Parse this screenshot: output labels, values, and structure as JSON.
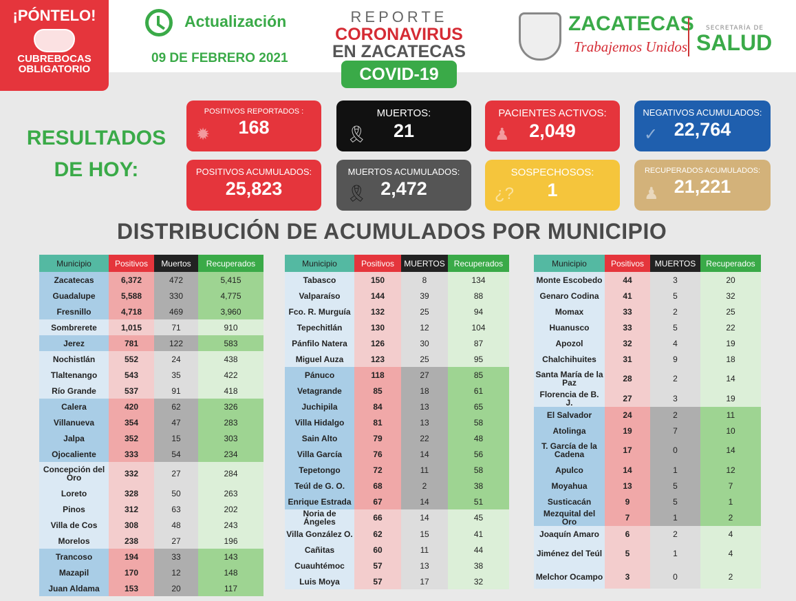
{
  "header": {
    "ponte_title": "¡PÓNTELO!",
    "ponte_sub1": "CUBREBOCAS",
    "ponte_sub2": "OBLIGATORIO",
    "update_label": "Actualización",
    "update_date": "09 DE FEBRERO 2021",
    "report_line1": "REPORTE",
    "report_line2": "CORONAVIRUS",
    "report_line3": "EN ZACATECAS",
    "covid_badge": "COVID-19",
    "state_name": "ZACATECAS",
    "state_slogan": "Trabajemos Unidos",
    "secretaria": "SECRETARÍA DE",
    "salud": "SALUD"
  },
  "results_title_1": "RESULTADOS",
  "results_title_2": "DE HOY:",
  "cards": {
    "positivos": {
      "label": "POSITIVOS REPORTADOS :",
      "value": "168"
    },
    "muertos": {
      "label": "MUERTOS:",
      "value": "21"
    },
    "activos": {
      "label": "PACIENTES ACTIVOS:",
      "value": "2,049"
    },
    "negativos": {
      "label": "NEGATIVOS ACUMULADOS:",
      "value": "22,764"
    },
    "pos_acum": {
      "label": "POSITIVOS ACUMULADOS:",
      "value": "25,823"
    },
    "mue_acum": {
      "label": "MUERTOS ACUMULADOS:",
      "value": "2,472"
    },
    "sospechosos": {
      "label": "SOSPECHOSOS:",
      "value": "1"
    },
    "recuperados": {
      "label": "RECUPERADOS ACUMULADOS:",
      "value": "21,221"
    }
  },
  "distribution_title": "DISTRIBUCIÓN DE ACUMULADOS POR MUNICIPIO",
  "colors": {
    "red": "#e5353c",
    "green": "#3aaa48",
    "blue": "#1f5fae",
    "yellow": "#f5c53c",
    "tan": "#d3b27a",
    "black": "#111111",
    "gray": "#555555"
  },
  "table1": {
    "headers": [
      "Municipio",
      "Positivos",
      "Muertos",
      "Recuperados"
    ],
    "rows": [
      [
        "Zacatecas",
        "6,372",
        "472",
        "5,415"
      ],
      [
        "Guadalupe",
        "5,588",
        "330",
        "4,775"
      ],
      [
        "Fresnillo",
        "4,718",
        "469",
        "3,960"
      ],
      [
        "Sombrerete",
        "1,015",
        "71",
        "910"
      ],
      [
        "Jerez",
        "781",
        "122",
        "583"
      ],
      [
        "Nochistlán",
        "552",
        "24",
        "438"
      ],
      [
        "Tlaltenango",
        "543",
        "35",
        "422"
      ],
      [
        "Río Grande",
        "537",
        "91",
        "418"
      ],
      [
        "Calera",
        "420",
        "62",
        "326"
      ],
      [
        "Villanueva",
        "354",
        "47",
        "283"
      ],
      [
        "Jalpa",
        "352",
        "15",
        "303"
      ],
      [
        "Ojocaliente",
        "333",
        "54",
        "234"
      ],
      [
        "Concepción del Oro",
        "332",
        "27",
        "284"
      ],
      [
        "Loreto",
        "328",
        "50",
        "263"
      ],
      [
        "Pinos",
        "312",
        "63",
        "202"
      ],
      [
        "Villa de Cos",
        "308",
        "48",
        "243"
      ],
      [
        "Morelos",
        "238",
        "27",
        "196"
      ],
      [
        "Trancoso",
        "194",
        "33",
        "143"
      ],
      [
        "Mazapil",
        "170",
        "12",
        "148"
      ],
      [
        "Juan Aldama",
        "153",
        "20",
        "117"
      ]
    ]
  },
  "table2": {
    "headers": [
      "Municipio",
      "Positivos",
      "MUERTOS",
      "Recuperados"
    ],
    "rows": [
      [
        "Tabasco",
        "150",
        "8",
        "134"
      ],
      [
        "Valparaíso",
        "144",
        "39",
        "88"
      ],
      [
        "Fco. R. Murguía",
        "132",
        "25",
        "94"
      ],
      [
        "Tepechitlán",
        "130",
        "12",
        "104"
      ],
      [
        "Pánfilo Natera",
        "126",
        "30",
        "87"
      ],
      [
        "Miguel Auza",
        "123",
        "25",
        "95"
      ],
      [
        "Pánuco",
        "118",
        "27",
        "85"
      ],
      [
        "Vetagrande",
        "85",
        "18",
        "61"
      ],
      [
        "Juchipila",
        "84",
        "13",
        "65"
      ],
      [
        "Villa Hidalgo",
        "81",
        "13",
        "58"
      ],
      [
        "Sain Alto",
        "79",
        "22",
        "48"
      ],
      [
        "Villa García",
        "76",
        "14",
        "56"
      ],
      [
        "Tepetongo",
        "72",
        "11",
        "58"
      ],
      [
        "Teúl de G. O.",
        "68",
        "2",
        "38"
      ],
      [
        "Enrique Estrada",
        "67",
        "14",
        "51"
      ],
      [
        "Noria de Ángeles",
        "66",
        "14",
        "45"
      ],
      [
        "Villa González O.",
        "62",
        "15",
        "41"
      ],
      [
        "Cañitas",
        "60",
        "11",
        "44"
      ],
      [
        "Cuauhtémoc",
        "57",
        "13",
        "38"
      ],
      [
        "Luis Moya",
        "57",
        "17",
        "32"
      ]
    ]
  },
  "table3": {
    "headers": [
      "Municipio",
      "Positivos",
      "MUERTOS",
      "Recuperados"
    ],
    "rows": [
      [
        "Monte Escobedo",
        "44",
        "3",
        "20"
      ],
      [
        "Genaro Codina",
        "41",
        "5",
        "32"
      ],
      [
        "Momax",
        "33",
        "2",
        "25"
      ],
      [
        "Huanusco",
        "33",
        "5",
        "22"
      ],
      [
        "Apozol",
        "32",
        "4",
        "19"
      ],
      [
        "Chalchihuites",
        "31",
        "9",
        "18"
      ],
      [
        "Santa María de la Paz",
        "28",
        "2",
        "14"
      ],
      [
        "Florencia de B. J.",
        "27",
        "3",
        "19"
      ],
      [
        "El Salvador",
        "24",
        "2",
        "11"
      ],
      [
        "Atolinga",
        "19",
        "7",
        "10"
      ],
      [
        "T. García de la Cadena",
        "17",
        "0",
        "14"
      ],
      [
        "Apulco",
        "14",
        "1",
        "12"
      ],
      [
        "Moyahua",
        "13",
        "5",
        "7"
      ],
      [
        "Susticacán",
        "9",
        "5",
        "1"
      ],
      [
        "Mezquital del Oro",
        "7",
        "1",
        "2"
      ],
      [
        "Joaquín Amaro",
        "6",
        "2",
        "4"
      ],
      [
        "Jiménez del Teúl",
        "5",
        "1",
        "4"
      ],
      [
        "Melchor Ocampo",
        "3",
        "0",
        "2"
      ]
    ]
  }
}
